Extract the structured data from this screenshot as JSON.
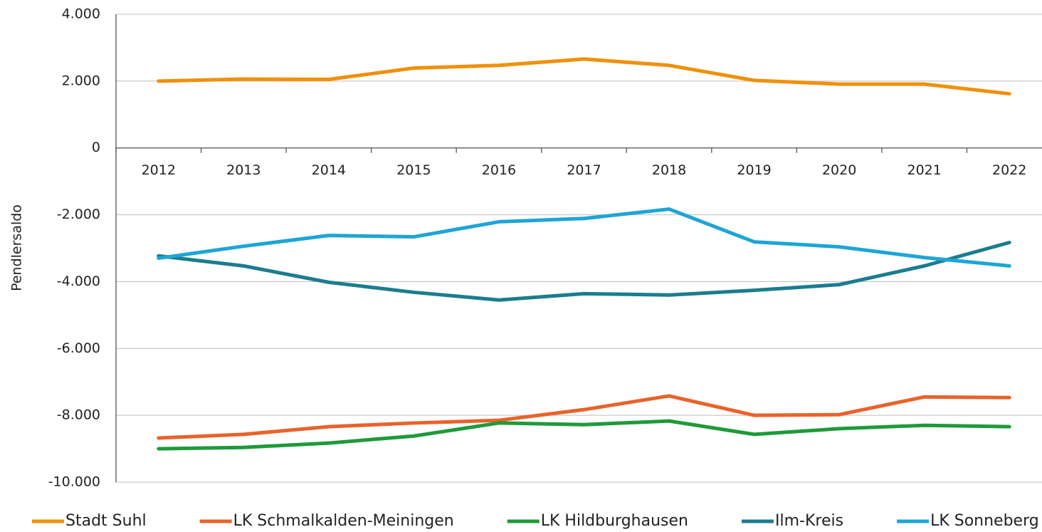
{
  "chart_data": {
    "type": "line",
    "y_label": "Pendlersaldo",
    "categories": [
      "2012",
      "2013",
      "2014",
      "2015",
      "2016",
      "2017",
      "2018",
      "2019",
      "2020",
      "2021",
      "2022"
    ],
    "series": [
      {
        "name": "Stadt Suhl",
        "color": "#f0900a",
        "values": [
          2000,
          2060,
          2050,
          2390,
          2470,
          2660,
          2470,
          2020,
          1910,
          1910,
          1620
        ]
      },
      {
        "name": "LK Schmalkalden-Meiningen",
        "color": "#e8632b",
        "values": [
          -8680,
          -8570,
          -8340,
          -8230,
          -8150,
          -7830,
          -7420,
          -8000,
          -7980,
          -7450,
          -7470
        ]
      },
      {
        "name": "LK Hildburghausen",
        "color": "#1e9a3a",
        "values": [
          -9000,
          -8960,
          -8830,
          -8620,
          -8230,
          -8280,
          -8170,
          -8570,
          -8400,
          -8300,
          -8340
        ]
      },
      {
        "name": "Ilm-Kreis",
        "color": "#1b7d8e",
        "values": [
          -3230,
          -3530,
          -4020,
          -4320,
          -4550,
          -4360,
          -4400,
          -4260,
          -4090,
          -3530,
          -2830
        ]
      },
      {
        "name": "LK Sonneberg",
        "color": "#1ea5d6",
        "values": [
          -3300,
          -2940,
          -2620,
          -2660,
          -2210,
          -2110,
          -1830,
          -2810,
          -2960,
          -3280,
          -3530
        ]
      }
    ],
    "ylim": [
      -10000,
      4000
    ],
    "yticks": [
      {
        "value": -10000,
        "label": "-10.000"
      },
      {
        "value": -8000,
        "label": "-8.000"
      },
      {
        "value": -6000,
        "label": "-6.000"
      },
      {
        "value": -4000,
        "label": "-4.000"
      },
      {
        "value": -2000,
        "label": "-2.000"
      },
      0,
      {
        "value": 2000,
        "label": "2.000"
      },
      {
        "value": 4000,
        "label": "4.000"
      }
    ],
    "grid": true,
    "legend": "bottom"
  }
}
